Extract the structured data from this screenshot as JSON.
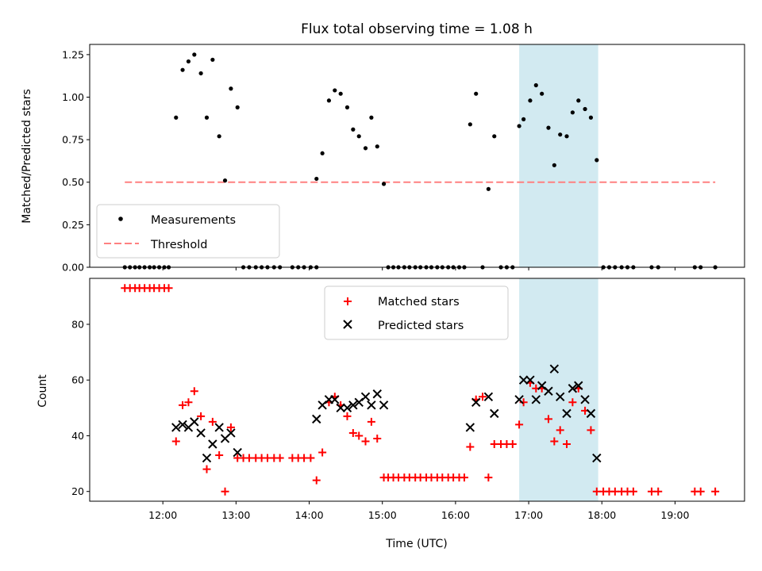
{
  "chart_data": [
    {
      "type": "scatter",
      "title": "Flux total observing time = 1.08 h",
      "xlabel": "",
      "ylabel": "Matched/Predicted stars",
      "xlim_hours": [
        11.0,
        19.95
      ],
      "ylim": [
        0.0,
        1.31
      ],
      "yticks": [
        0.0,
        0.25,
        0.5,
        0.75,
        1.0,
        1.25
      ],
      "ytick_labels": [
        "0.00",
        "0.25",
        "0.50",
        "0.75",
        "1.00",
        "1.25"
      ],
      "shaded_span_hours": [
        16.87,
        17.95
      ],
      "shade_color": "#add8e6",
      "legend": {
        "position": "lower-left",
        "entries": [
          "Measurements",
          "Threshold"
        ]
      },
      "series": [
        {
          "name": "Measurements",
          "marker": "dot",
          "color": "#000000",
          "points": [
            [
              11.48,
              0
            ],
            [
              11.55,
              0
            ],
            [
              11.62,
              0
            ],
            [
              11.68,
              0
            ],
            [
              11.75,
              0
            ],
            [
              11.82,
              0
            ],
            [
              11.88,
              0
            ],
            [
              11.95,
              0
            ],
            [
              12.02,
              0
            ],
            [
              12.08,
              0
            ],
            [
              12.18,
              0.88
            ],
            [
              12.27,
              1.16
            ],
            [
              12.35,
              1.21
            ],
            [
              12.43,
              1.25
            ],
            [
              12.52,
              1.14
            ],
            [
              12.6,
              0.88
            ],
            [
              12.68,
              1.22
            ],
            [
              12.77,
              0.77
            ],
            [
              12.85,
              0.51
            ],
            [
              12.93,
              1.05
            ],
            [
              13.02,
              0.94
            ],
            [
              13.1,
              0
            ],
            [
              13.18,
              0
            ],
            [
              13.27,
              0
            ],
            [
              13.35,
              0
            ],
            [
              13.43,
              0
            ],
            [
              13.52,
              0
            ],
            [
              13.6,
              0
            ],
            [
              13.77,
              0
            ],
            [
              13.85,
              0
            ],
            [
              13.93,
              0
            ],
            [
              14.02,
              0
            ],
            [
              14.1,
              0
            ],
            [
              14.1,
              0.52
            ],
            [
              14.18,
              0.67
            ],
            [
              14.27,
              0.98
            ],
            [
              14.35,
              1.04
            ],
            [
              14.43,
              1.02
            ],
            [
              14.52,
              0.94
            ],
            [
              14.6,
              0.81
            ],
            [
              14.68,
              0.77
            ],
            [
              14.77,
              0.7
            ],
            [
              14.85,
              0.88
            ],
            [
              14.93,
              0.71
            ],
            [
              15.02,
              0.49
            ],
            [
              15.08,
              0
            ],
            [
              15.15,
              0
            ],
            [
              15.22,
              0
            ],
            [
              15.3,
              0
            ],
            [
              15.37,
              0
            ],
            [
              15.45,
              0
            ],
            [
              15.52,
              0
            ],
            [
              15.6,
              0
            ],
            [
              15.67,
              0
            ],
            [
              15.75,
              0
            ],
            [
              15.82,
              0
            ],
            [
              15.9,
              0
            ],
            [
              15.97,
              0
            ],
            [
              16.05,
              0
            ],
            [
              16.12,
              0
            ],
            [
              16.2,
              0.84
            ],
            [
              16.28,
              1.02
            ],
            [
              16.37,
              0
            ],
            [
              16.45,
              0.46
            ],
            [
              16.53,
              0.77
            ],
            [
              16.62,
              0
            ],
            [
              16.7,
              0
            ],
            [
              16.78,
              0
            ],
            [
              16.87,
              0.83
            ],
            [
              16.93,
              0.87
            ],
            [
              17.02,
              0.98
            ],
            [
              17.1,
              1.07
            ],
            [
              17.18,
              1.02
            ],
            [
              17.27,
              0.82
            ],
            [
              17.35,
              0.6
            ],
            [
              17.43,
              0.78
            ],
            [
              17.52,
              0.77
            ],
            [
              17.6,
              0.91
            ],
            [
              17.68,
              0.98
            ],
            [
              17.77,
              0.93
            ],
            [
              17.85,
              0.88
            ],
            [
              17.93,
              0.63
            ],
            [
              18.02,
              0
            ],
            [
              18.1,
              0
            ],
            [
              18.18,
              0
            ],
            [
              18.27,
              0
            ],
            [
              18.35,
              0
            ],
            [
              18.43,
              0
            ],
            [
              18.68,
              0
            ],
            [
              18.77,
              0
            ],
            [
              19.27,
              0
            ],
            [
              19.35,
              0
            ],
            [
              19.55,
              0
            ]
          ]
        },
        {
          "name": "Threshold",
          "style": "dashed-line",
          "color": "#ff8080",
          "x": [
            11.48,
            19.55
          ],
          "y": [
            0.5,
            0.5
          ]
        }
      ]
    },
    {
      "type": "scatter",
      "title": "",
      "xlabel": "Time (UTC)",
      "ylabel": "Count",
      "xlim_hours": [
        11.0,
        19.95
      ],
      "ylim": [
        16.5,
        96.5
      ],
      "yticks": [
        20,
        40,
        60,
        80
      ],
      "ytick_labels": [
        "20",
        "40",
        "60",
        "80"
      ],
      "xticks_hours": [
        12,
        13,
        14,
        15,
        16,
        17,
        18,
        19
      ],
      "xtick_labels": [
        "12:00",
        "13:00",
        "14:00",
        "15:00",
        "16:00",
        "17:00",
        "18:00",
        "19:00"
      ],
      "shaded_span_hours": [
        16.87,
        17.95
      ],
      "shade_color": "#add8e6",
      "legend": {
        "position": "upper-center",
        "entries": [
          "Matched stars",
          "Predicted stars"
        ]
      },
      "series": [
        {
          "name": "Matched stars",
          "marker": "plus",
          "color": "#ff0000",
          "points": [
            [
              11.48,
              93
            ],
            [
              11.55,
              93
            ],
            [
              11.62,
              93
            ],
            [
              11.68,
              93
            ],
            [
              11.75,
              93
            ],
            [
              11.82,
              93
            ],
            [
              11.88,
              93
            ],
            [
              11.95,
              93
            ],
            [
              12.02,
              93
            ],
            [
              12.08,
              93
            ],
            [
              12.18,
              38
            ],
            [
              12.27,
              51
            ],
            [
              12.35,
              52
            ],
            [
              12.43,
              56
            ],
            [
              12.52,
              47
            ],
            [
              12.6,
              28
            ],
            [
              12.68,
              45
            ],
            [
              12.77,
              33
            ],
            [
              12.85,
              20
            ],
            [
              12.93,
              43
            ],
            [
              13.02,
              32
            ],
            [
              13.1,
              32
            ],
            [
              13.18,
              32
            ],
            [
              13.27,
              32
            ],
            [
              13.35,
              32
            ],
            [
              13.43,
              32
            ],
            [
              13.52,
              32
            ],
            [
              13.6,
              32
            ],
            [
              13.77,
              32
            ],
            [
              13.85,
              32
            ],
            [
              13.93,
              32
            ],
            [
              14.02,
              32
            ],
            [
              14.1,
              24
            ],
            [
              14.18,
              34
            ],
            [
              14.27,
              52
            ],
            [
              14.35,
              54
            ],
            [
              14.43,
              51
            ],
            [
              14.52,
              47
            ],
            [
              14.6,
              41
            ],
            [
              14.68,
              40
            ],
            [
              14.77,
              38
            ],
            [
              14.85,
              45
            ],
            [
              14.93,
              39
            ],
            [
              15.02,
              25
            ],
            [
              15.08,
              25
            ],
            [
              15.15,
              25
            ],
            [
              15.22,
              25
            ],
            [
              15.3,
              25
            ],
            [
              15.37,
              25
            ],
            [
              15.45,
              25
            ],
            [
              15.52,
              25
            ],
            [
              15.6,
              25
            ],
            [
              15.67,
              25
            ],
            [
              15.75,
              25
            ],
            [
              15.82,
              25
            ],
            [
              15.9,
              25
            ],
            [
              15.97,
              25
            ],
            [
              16.05,
              25
            ],
            [
              16.12,
              25
            ],
            [
              16.2,
              36
            ],
            [
              16.28,
              53
            ],
            [
              16.37,
              54
            ],
            [
              16.45,
              25
            ],
            [
              16.53,
              37
            ],
            [
              16.62,
              37
            ],
            [
              16.7,
              37
            ],
            [
              16.78,
              37
            ],
            [
              16.87,
              44
            ],
            [
              16.93,
              52
            ],
            [
              17.02,
              59
            ],
            [
              17.1,
              57
            ],
            [
              17.18,
              57
            ],
            [
              17.27,
              46
            ],
            [
              17.35,
              38
            ],
            [
              17.43,
              42
            ],
            [
              17.52,
              37
            ],
            [
              17.6,
              52
            ],
            [
              17.68,
              57
            ],
            [
              17.77,
              49
            ],
            [
              17.85,
              42
            ],
            [
              17.93,
              20
            ],
            [
              18.02,
              20
            ],
            [
              18.1,
              20
            ],
            [
              18.18,
              20
            ],
            [
              18.27,
              20
            ],
            [
              18.35,
              20
            ],
            [
              18.43,
              20
            ],
            [
              18.68,
              20
            ],
            [
              18.77,
              20
            ],
            [
              19.27,
              20
            ],
            [
              19.35,
              20
            ],
            [
              19.55,
              20
            ]
          ]
        },
        {
          "name": "Predicted stars",
          "marker": "x",
          "color": "#000000",
          "points": [
            [
              12.18,
              43
            ],
            [
              12.27,
              44
            ],
            [
              12.35,
              43
            ],
            [
              12.43,
              45
            ],
            [
              12.52,
              41
            ],
            [
              12.6,
              32
            ],
            [
              12.68,
              37
            ],
            [
              12.77,
              43
            ],
            [
              12.85,
              39
            ],
            [
              12.93,
              41
            ],
            [
              13.02,
              34
            ],
            [
              14.1,
              46
            ],
            [
              14.18,
              51
            ],
            [
              14.27,
              53
            ],
            [
              14.35,
              53
            ],
            [
              14.43,
              50
            ],
            [
              14.52,
              50
            ],
            [
              14.6,
              51
            ],
            [
              14.68,
              52
            ],
            [
              14.77,
              54
            ],
            [
              14.85,
              51
            ],
            [
              14.93,
              55
            ],
            [
              15.02,
              51
            ],
            [
              16.2,
              43
            ],
            [
              16.28,
              52
            ],
            [
              16.45,
              54
            ],
            [
              16.53,
              48
            ],
            [
              16.87,
              53
            ],
            [
              16.93,
              60
            ],
            [
              17.02,
              60
            ],
            [
              17.1,
              53
            ],
            [
              17.18,
              58
            ],
            [
              17.27,
              56
            ],
            [
              17.35,
              64
            ],
            [
              17.43,
              54
            ],
            [
              17.52,
              48
            ],
            [
              17.6,
              57
            ],
            [
              17.68,
              58
            ],
            [
              17.77,
              53
            ],
            [
              17.85,
              48
            ],
            [
              17.93,
              32
            ]
          ]
        }
      ]
    }
  ]
}
